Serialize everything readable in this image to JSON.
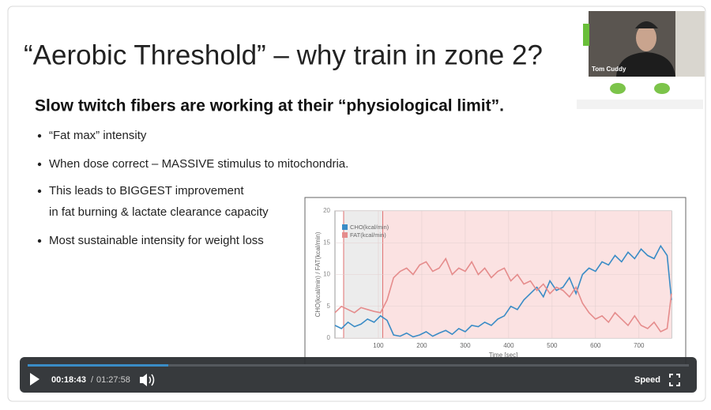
{
  "slide": {
    "title": "“Aerobic Threshold” – why train in zone 2?",
    "subtitle": "Slow twitch fibers are working at their “physiological limit”.",
    "bullets": [
      [
        "“Fat max” intensity"
      ],
      [
        "When dose correct – MASSIVE stimulus to mitochondria."
      ],
      [
        "This leads to BIGGEST improvement",
        "in fat burning & lactate clearance capacity"
      ],
      [
        "Most sustainable intensity for weight loss"
      ]
    ]
  },
  "webcam": {
    "name": "Tom Cuddy"
  },
  "player": {
    "current_time": "00:18:43",
    "time_separator": "/",
    "duration": "01:27:58",
    "speed_label": "Speed"
  },
  "chart_data": {
    "type": "line",
    "xlabel": "Time [sec]",
    "ylabel": "CHO(kcal/min) / FAT(kcal/min)",
    "x": [
      0,
      15,
      30,
      45,
      60,
      75,
      90,
      105,
      120,
      135,
      150,
      165,
      180,
      195,
      210,
      225,
      240,
      255,
      270,
      285,
      300,
      315,
      330,
      345,
      360,
      375,
      390,
      405,
      420,
      435,
      450,
      465,
      480,
      495,
      510,
      525,
      540,
      555,
      570,
      585,
      600,
      615,
      630,
      645,
      660,
      675,
      690,
      705,
      720,
      735,
      750,
      765,
      775
    ],
    "series": [
      {
        "name": "CHO(kcal/min)",
        "color": "#3a8cc6",
        "values": [
          2,
          1.5,
          2.5,
          1.8,
          2.2,
          3,
          2.5,
          3.5,
          2.8,
          0.5,
          0.3,
          0.8,
          0.2,
          0.5,
          1,
          0.3,
          0.8,
          1.2,
          0.6,
          1.5,
          1,
          2,
          1.8,
          2.5,
          2,
          3,
          3.5,
          5,
          4.5,
          6,
          7,
          8,
          6.5,
          9,
          7.5,
          8,
          9.5,
          7,
          10,
          11,
          10.5,
          12,
          11.5,
          13,
          12,
          13.5,
          12.5,
          14,
          13,
          12.5,
          14.5,
          13,
          6
        ]
      },
      {
        "name": "FAT(kcal/min)",
        "color": "#e58c8c",
        "values": [
          4,
          5,
          4.5,
          4,
          4.8,
          4.5,
          4.2,
          4,
          6,
          9.5,
          10.5,
          11,
          10,
          11.5,
          12,
          10.5,
          11,
          12.5,
          10,
          11,
          10.5,
          12,
          10,
          11,
          9.5,
          10.5,
          11,
          9,
          10,
          8.5,
          9,
          7.5,
          8.5,
          7,
          8,
          7.5,
          6.5,
          8,
          5.5,
          4,
          3,
          3.5,
          2.5,
          4,
          3,
          2,
          3.5,
          2,
          1.5,
          2.5,
          1,
          1.5,
          7
        ]
      }
    ],
    "regions": [
      {
        "from": 20,
        "to": 110,
        "color": "#ececec"
      },
      {
        "from": 110,
        "to": 775,
        "color": "#fbe2e2"
      }
    ],
    "xlim": [
      0,
      775
    ],
    "xticks": [
      100,
      200,
      300,
      400,
      500,
      600,
      700
    ],
    "ylim": [
      0,
      20
    ],
    "yticks": [
      0,
      5,
      10,
      15,
      20
    ],
    "grid": true
  }
}
